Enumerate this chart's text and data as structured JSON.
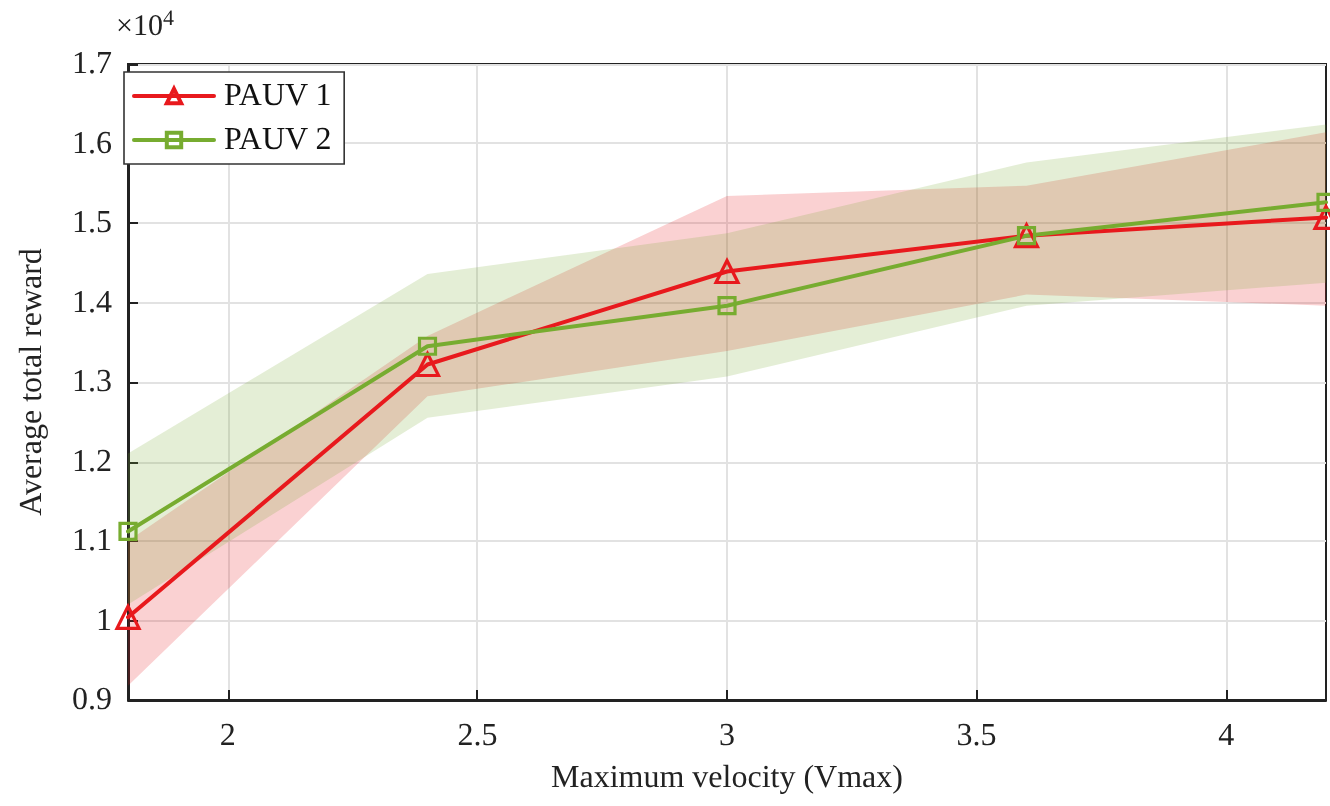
{
  "chart_data": {
    "type": "line",
    "xlabel": "Maximum velocity (Vmax)",
    "ylabel": "Average total reward",
    "annotations": [
      "×10$^{4}$"
    ],
    "x": [
      1.8,
      2.4,
      3.0,
      3.6,
      4.2
    ],
    "series": [
      {
        "name": "PAUV 1",
        "color": "#e8191d",
        "marker": "triangle",
        "values": [
          1.004,
          1.322,
          1.439,
          1.484,
          1.507
        ],
        "lower": [
          0.918,
          1.282,
          1.339,
          1.41,
          1.396
        ],
        "upper": [
          1.1,
          1.358,
          1.534,
          1.547,
          1.614
        ]
      },
      {
        "name": "PAUV 2",
        "color": "#77ac30",
        "marker": "square",
        "values": [
          1.112,
          1.345,
          1.396,
          1.484,
          1.526
        ],
        "lower": [
          1.02,
          1.255,
          1.307,
          1.396,
          1.425
        ],
        "upper": [
          1.21,
          1.436,
          1.487,
          1.576,
          1.624
        ]
      }
    ],
    "xlim": [
      1.8,
      4.2
    ],
    "xticks": [
      2,
      2.5,
      3,
      3.5,
      4
    ],
    "ylim": [
      0.9,
      1.7
    ],
    "yticks": [
      0.9,
      1,
      1.1,
      1.2,
      1.3,
      1.4,
      1.5,
      1.6,
      1.7
    ],
    "grid": true,
    "legend": "top left",
    "line_style": "solid"
  }
}
